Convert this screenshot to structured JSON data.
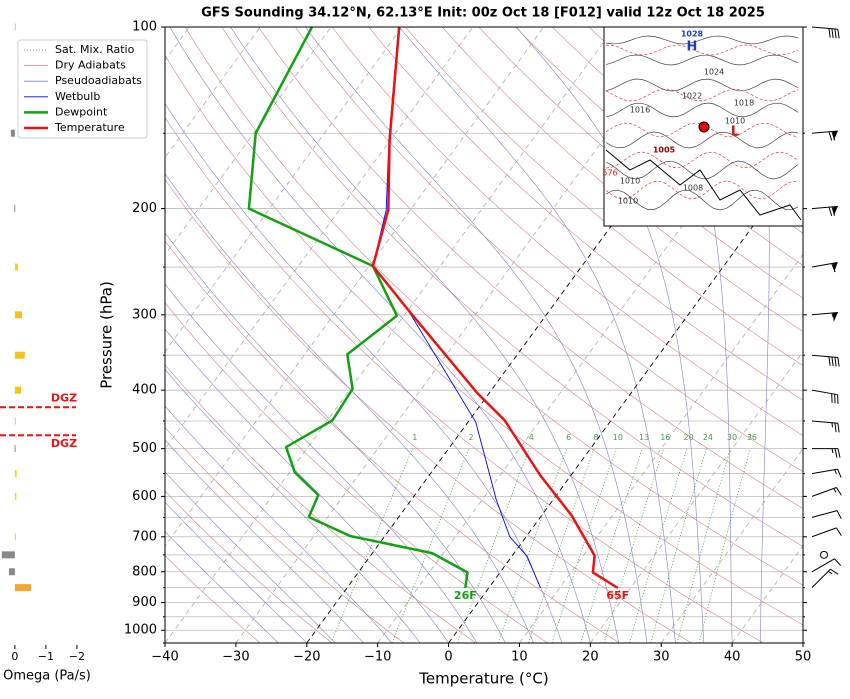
{
  "chart_data": {
    "type": "skewt",
    "title": "GFS Sounding 34.12°N, 62.13°E Init: 00z Oct 18 [F012] valid 12z Oct 18 2025",
    "xlabel": "Temperature (°C)",
    "ylabel": "Pressure (hPa)",
    "xlim": [
      -40,
      50
    ],
    "xticks": [
      {
        "value": -40,
        "label": "−40"
      },
      {
        "value": -30,
        "label": "−30"
      },
      {
        "value": -20,
        "label": "−20"
      },
      {
        "value": -10,
        "label": "−10"
      },
      0,
      10,
      20,
      30,
      40,
      50
    ],
    "ylim": [
      1050,
      100
    ],
    "log_y": true,
    "yticks": [
      100,
      200,
      300,
      400,
      500,
      600,
      700,
      800,
      900,
      1000
    ],
    "yminor": [
      150,
      250,
      350,
      450,
      550,
      650,
      750,
      850,
      950,
      1050
    ],
    "highlight_isotherms": [
      0,
      -20
    ],
    "reference_lines": [
      {
        "name": "Sat. Mix. Ratio",
        "color": "#3a9a3a"
      },
      {
        "name": "Dry Adiabats",
        "color": "#d98080"
      },
      {
        "name": "Pseudoadiabats",
        "color": "#8080d0"
      }
    ],
    "mixing_ratio_labels": [
      1,
      2,
      4,
      6,
      8,
      10,
      13,
      16,
      20,
      24,
      30,
      36
    ],
    "series": [
      {
        "name": "Wetbulb",
        "color": "#0000ff",
        "pressure": [
          851,
          753,
          700,
          608,
          452,
          297,
          249,
          201,
          154,
          100
        ],
        "values": [
          7.3,
          2.1,
          -2.3,
          -8.0,
          -18.9,
          -39.6,
          -49.5,
          -53.4,
          -60.2,
          -70.5
        ]
      },
      {
        "name": "Dewpoint",
        "color": "#13a013",
        "end_label": "26F",
        "pressure": [
          851,
          802,
          745,
          698,
          649,
          597,
          547,
          497,
          449,
          398,
          349,
          301,
          249,
          200,
          150,
          100
        ],
        "values": [
          -3.3,
          -4.6,
          -11.6,
          -24.9,
          -32.7,
          -33.6,
          -39.3,
          -43.1,
          -39.3,
          -39.7,
          -44.0,
          -41.0,
          -49.5,
          -72.9,
          -79.7,
          -82.7
        ]
      },
      {
        "name": "Temperature",
        "color": "#ee1111",
        "end_label": "65F",
        "pressure": [
          851,
          802,
          752,
          645,
          553,
          449,
          405,
          297,
          249,
          201,
          154,
          100
        ],
        "values": [
          18.2,
          13.1,
          11.6,
          4.2,
          -4.4,
          -15.0,
          -21.6,
          -39.5,
          -49.5,
          -53.1,
          -60.1,
          -70.4
        ]
      }
    ],
    "omega": {
      "xlabel": "Omega (Pa/s)",
      "xlim": [
        0.48,
        -2.1
      ],
      "xticks": [
        0,
        {
          "value": -1,
          "label": "−1"
        },
        {
          "value": -2,
          "label": "−2"
        }
      ],
      "pressure": [
        100,
        150,
        200,
        250,
        300,
        350,
        400,
        450,
        500,
        550,
        600,
        700,
        750,
        800,
        850
      ],
      "values": [
        -0.02,
        0.13,
        0.02,
        -0.1,
        -0.23,
        -0.32,
        -0.2,
        -0.03,
        0.01,
        -0.06,
        -0.05,
        -0.03,
        0.42,
        0.19,
        -0.52
      ],
      "colors": [
        "#f7d21c",
        "#888888",
        "#888888",
        "#f7d21c",
        "#f7c21c",
        "#f7c21c",
        "#f7c21c",
        "#f7d21c",
        "#888888",
        "#f7d21c",
        "#f7d21c",
        "#f7d21c",
        "#888888",
        "#888888",
        "#f3a632"
      ]
    },
    "dgz": {
      "label": "DGZ",
      "pressures": [
        427,
        475
      ],
      "color": "#ee1111"
    },
    "wind": {
      "pressure": [
        100,
        150,
        200,
        250,
        300,
        350,
        400,
        450,
        500,
        550,
        600,
        650,
        700,
        750,
        800,
        850
      ],
      "speed": [
        40,
        70,
        70,
        60,
        55,
        40,
        30,
        25,
        25,
        15,
        15,
        10,
        10,
        0,
        10,
        15
      ],
      "direction": [
        95,
        85,
        85,
        80,
        85,
        95,
        100,
        95,
        90,
        80,
        70,
        75,
        70,
        0,
        60,
        45
      ]
    },
    "inset": {
      "labels": [
        {
          "text": "1028",
          "color": "#1d3fc0"
        },
        {
          "text": "H",
          "color": "#1d3fc0"
        },
        {
          "text": "1024",
          "color": "#333333"
        },
        {
          "text": "1022",
          "color": "#333333"
        },
        {
          "text": "1018",
          "color": "#333333"
        },
        {
          "text": "1016",
          "color": "#333333"
        },
        {
          "text": "1010",
          "color": "#333333"
        },
        {
          "text": "L",
          "color": "#cc1111"
        },
        {
          "text": "1005",
          "color": "#990000"
        },
        {
          "text": "1008",
          "color": "#333333"
        },
        {
          "text": "1010",
          "color": "#333333"
        },
        {
          "text": "1010",
          "color": "#333333"
        },
        {
          "text": "576",
          "color": "#ee1111"
        }
      ]
    }
  }
}
